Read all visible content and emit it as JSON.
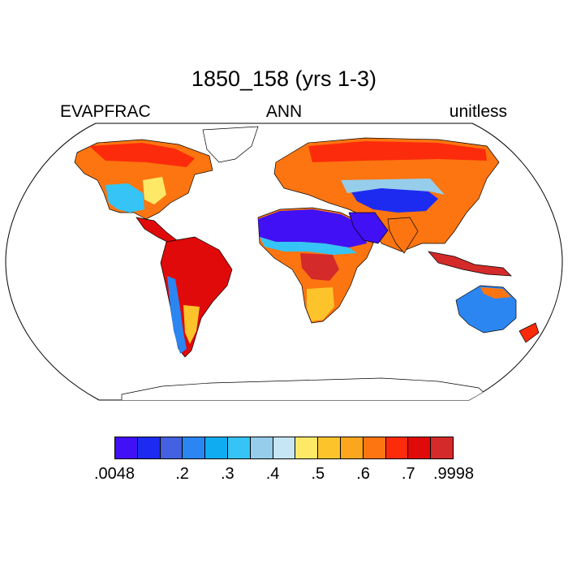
{
  "title": "1850_158 (yrs 1-3)",
  "subtitle": {
    "left": "EVAPFRAC",
    "center": "ANN",
    "right": "unitless"
  },
  "colorbar": {
    "colors": [
      "#4110f4",
      "#1d2bf0",
      "#4361e0",
      "#2b86f2",
      "#10acf2",
      "#35c4f5",
      "#96cdea",
      "#c6e6f5",
      "#fde966",
      "#fcc42a",
      "#fca61d",
      "#fc7510",
      "#fc2b0c",
      "#e00a0a",
      "#d42a2a"
    ],
    "labels": [
      ".0048",
      ".2",
      ".3",
      ".4",
      ".5",
      ".6",
      ".7",
      ".9998"
    ]
  },
  "legend_colors": {
    "ocean": "#ffffff",
    "coast": "#000000"
  }
}
